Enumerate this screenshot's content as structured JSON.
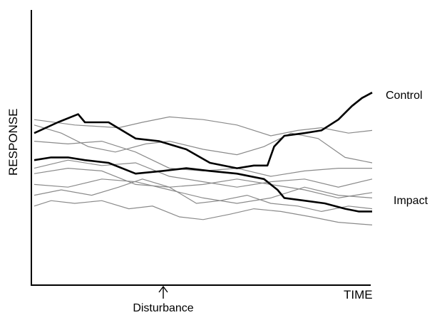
{
  "chart_data": {
    "type": "line",
    "title": "",
    "xlabel": "TIME",
    "ylabel": "RESPONSE",
    "annotations": [
      {
        "text": "Disturbance",
        "x": 4
      }
    ],
    "xlim": [
      0,
      10
    ],
    "ylim": [
      0,
      10
    ],
    "grid": false,
    "legend": "none",
    "series": [
      {
        "name": "Control",
        "style": "thick",
        "x": [
          0,
          0.7,
          1.3,
          1.5,
          2.2,
          3.0,
          3.7,
          4.5,
          5.2,
          6.0,
          6.5,
          6.9,
          7.1,
          7.4,
          8.0,
          8.5,
          9.0,
          9.4,
          9.7,
          10
        ],
        "y": [
          5.6,
          6.0,
          6.3,
          6.0,
          6.0,
          5.4,
          5.3,
          5.0,
          4.5,
          4.3,
          4.4,
          4.4,
          5.1,
          5.5,
          5.6,
          5.7,
          6.1,
          6.6,
          6.9,
          7.1
        ]
      },
      {
        "name": "Impact",
        "style": "thick",
        "x": [
          0,
          0.5,
          1.0,
          1.5,
          2.2,
          3.0,
          3.8,
          4.5,
          5.2,
          6.0,
          6.8,
          7.2,
          7.4,
          8.0,
          8.6,
          9.2,
          9.6,
          10
        ],
        "y": [
          4.6,
          4.7,
          4.7,
          4.6,
          4.5,
          4.1,
          4.2,
          4.3,
          4.2,
          4.1,
          3.9,
          3.5,
          3.2,
          3.1,
          3.0,
          2.8,
          2.7,
          2.7
        ]
      },
      {
        "name": "",
        "style": "thin",
        "x": [
          0,
          1.2,
          2.5,
          3.2,
          4.0,
          5.0,
          6.0,
          7.0,
          7.8,
          8.5,
          9.3,
          10
        ],
        "y": [
          6.1,
          5.9,
          5.8,
          6.0,
          6.2,
          6.1,
          5.9,
          5.5,
          5.7,
          5.8,
          5.6,
          5.7
        ]
      },
      {
        "name": "",
        "style": "thin",
        "x": [
          0,
          0.8,
          1.6,
          2.4,
          3.3,
          4.0,
          5.0,
          6.0,
          6.8,
          7.6,
          8.4,
          9.2,
          10
        ],
        "y": [
          5.9,
          5.6,
          5.1,
          4.9,
          5.2,
          5.3,
          5.0,
          4.8,
          5.1,
          5.6,
          5.4,
          4.7,
          4.5
        ]
      },
      {
        "name": "",
        "style": "thin",
        "x": [
          0,
          1.0,
          2.0,
          3.0,
          4.0,
          5.0,
          6.0,
          7.0,
          8.0,
          9.0,
          10
        ],
        "y": [
          5.3,
          5.2,
          5.3,
          4.9,
          4.3,
          4.2,
          4.3,
          4.0,
          4.2,
          4.3,
          4.3
        ]
      },
      {
        "name": "",
        "style": "thin",
        "x": [
          0,
          1.0,
          2.0,
          3.0,
          4.0,
          5.0,
          6.0,
          7.0,
          8.0,
          9.0,
          10
        ],
        "y": [
          4.3,
          4.6,
          4.4,
          4.5,
          4.0,
          3.8,
          3.6,
          3.8,
          3.9,
          3.6,
          3.9
        ]
      },
      {
        "name": "",
        "style": "thin",
        "x": [
          0,
          1.0,
          2.0,
          3.0,
          4.0,
          5.0,
          6.0,
          7.0,
          8.0,
          9.0,
          10
        ],
        "y": [
          4.1,
          4.3,
          4.2,
          3.7,
          3.6,
          3.7,
          3.9,
          3.7,
          3.5,
          3.2,
          3.4
        ]
      },
      {
        "name": "",
        "style": "thin",
        "x": [
          0,
          1.0,
          2.0,
          3.0,
          4.0,
          5.0,
          6.0,
          7.0,
          8.0,
          9.0,
          10
        ],
        "y": [
          3.7,
          3.6,
          3.9,
          3.8,
          3.5,
          3.2,
          3.0,
          3.2,
          3.6,
          3.3,
          3.2
        ]
      },
      {
        "name": "",
        "style": "thin",
        "x": [
          0,
          0.8,
          1.7,
          2.5,
          3.2,
          4.0,
          4.8,
          5.5,
          6.3,
          7.0,
          7.8,
          8.5,
          9.3,
          10
        ],
        "y": [
          3.3,
          3.5,
          3.3,
          3.6,
          3.9,
          3.6,
          3.0,
          3.1,
          3.3,
          3.0,
          2.9,
          2.7,
          2.9,
          2.8
        ]
      },
      {
        "name": "",
        "style": "thin",
        "x": [
          0,
          0.5,
          1.2,
          2.0,
          2.8,
          3.5,
          4.3,
          5.0,
          5.8,
          6.5,
          7.3,
          8.2,
          9.0,
          10
        ],
        "y": [
          2.9,
          3.1,
          3.0,
          3.1,
          2.8,
          2.9,
          2.5,
          2.4,
          2.6,
          2.8,
          2.7,
          2.5,
          2.3,
          2.2
        ]
      }
    ]
  }
}
